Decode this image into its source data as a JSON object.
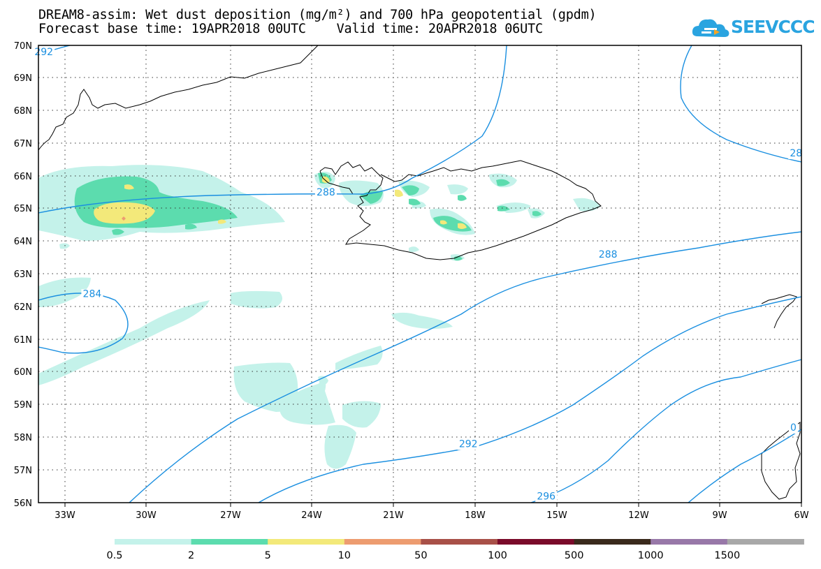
{
  "title": {
    "line1": "DREAM8-assim: Wet dust deposition (mg/m²) and 700 hPa geopotential (gpdm)",
    "line2": "Forecast base time: 19APR2018 00UTC    Valid time: 20APR2018 06UTC"
  },
  "logo": {
    "text": "SEEVCCC",
    "icon": "cloud-icon",
    "color": "#2aa4e0"
  },
  "map": {
    "lat_range": [
      56,
      70
    ],
    "lon_range": [
      -34.4,
      -6
    ],
    "lat_labels": [
      "70N",
      "69N",
      "68N",
      "67N",
      "66N",
      "65N",
      "64N",
      "63N",
      "62N",
      "61N",
      "60N",
      "59N",
      "58N",
      "57N",
      "56N"
    ],
    "lon_labels": [
      "33W",
      "30W",
      "27W",
      "24W",
      "21W",
      "18W",
      "15W",
      "12W",
      "9W",
      "6W"
    ],
    "contour_color": "#1a8fe0",
    "contour_labels": [
      {
        "text": "292",
        "lon": -34.2,
        "lat": 69.7
      },
      {
        "text": "288",
        "lon": -23.7,
        "lat": 65.4
      },
      {
        "text": "28",
        "lon": -6.2,
        "lat": 66.6
      },
      {
        "text": "284",
        "lon": -32.4,
        "lat": 62.3
      },
      {
        "text": "288",
        "lon": -13.2,
        "lat": 63.5
      },
      {
        "text": "292",
        "lon": -18.4,
        "lat": 57.7
      },
      {
        "text": "296",
        "lon": -15.5,
        "lat": 56.1
      },
      {
        "text": "0",
        "lon": -6.3,
        "lat": 58.2
      }
    ]
  },
  "legend": {
    "labels": [
      "0.5",
      "2",
      "5",
      "10",
      "50",
      "100",
      "500",
      "1000",
      "1500"
    ],
    "colors": [
      "#c4f2ea",
      "#5cdcae",
      "#f3e97a",
      "#ed9c70",
      "#a85048",
      "#7a0a2a",
      "#3a2a1c",
      "#9878a8",
      "#a8a8a8"
    ]
  }
}
